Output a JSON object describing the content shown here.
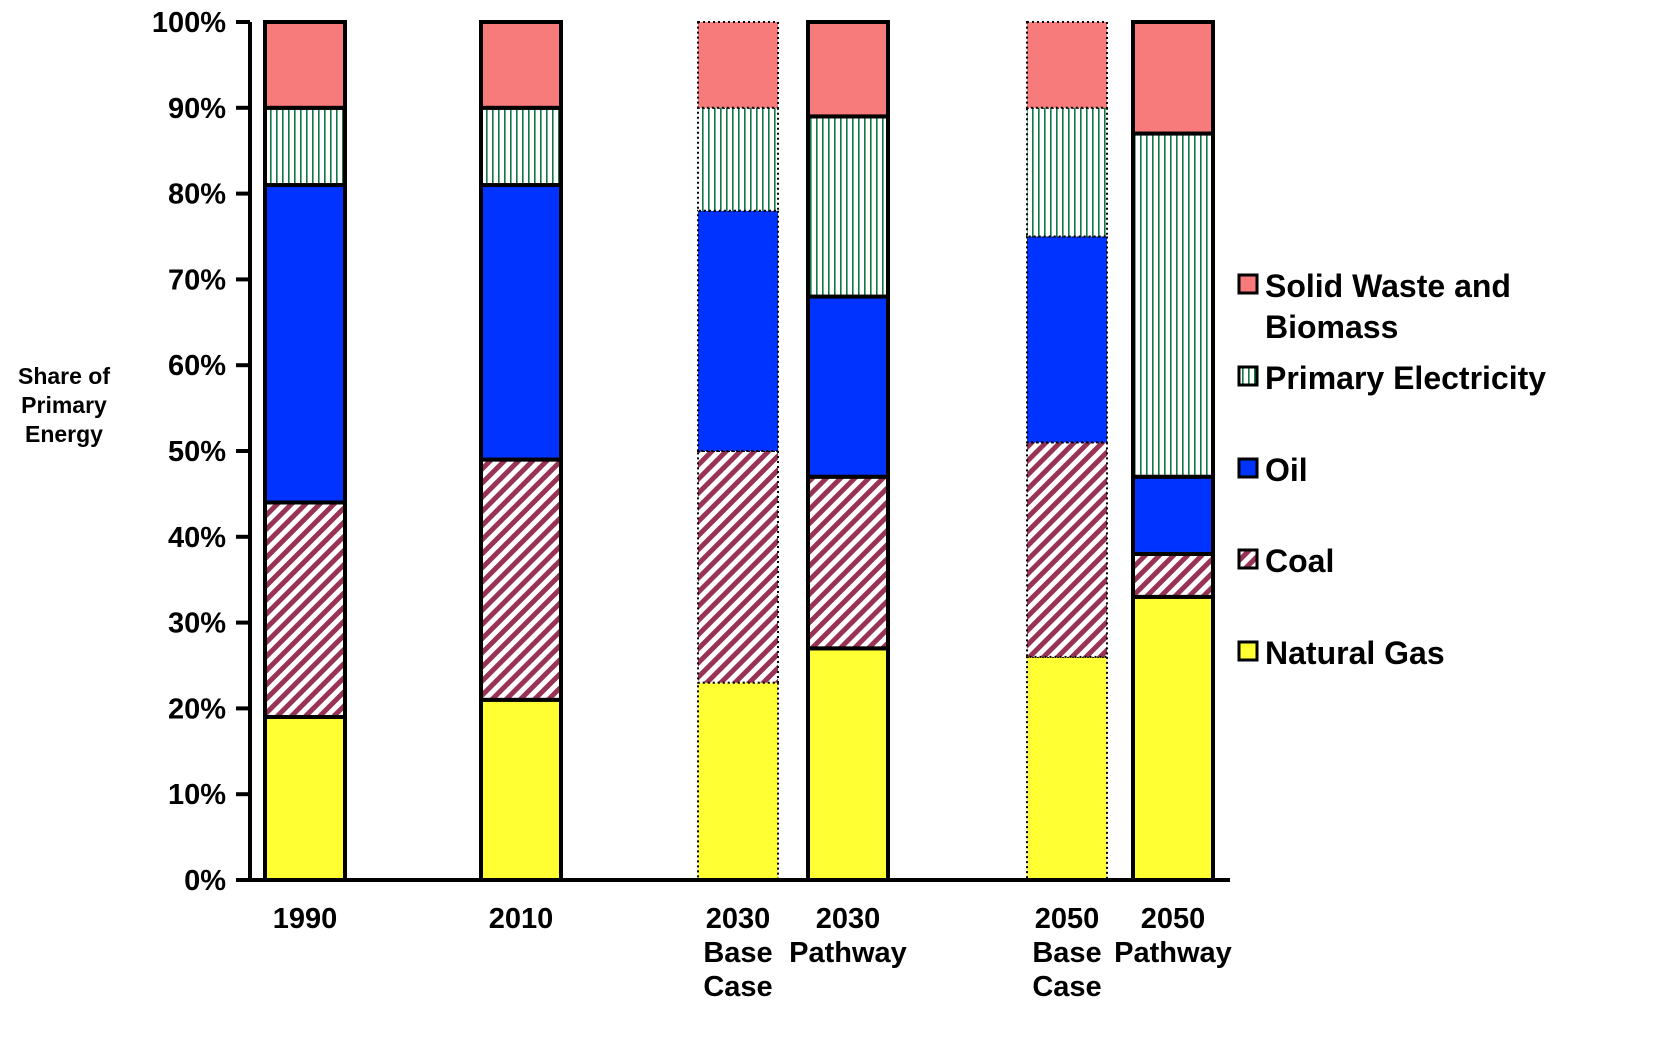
{
  "chart_data": {
    "type": "bar",
    "stacked": true,
    "ylabel": [
      "Share of",
      "Primary",
      "Energy"
    ],
    "ylim": [
      0,
      100
    ],
    "y_ticks": [
      {
        "value": 0,
        "label": "0%"
      },
      {
        "value": 10,
        "label": "10%"
      },
      {
        "value": 20,
        "label": "20%"
      },
      {
        "value": 30,
        "label": "30%"
      },
      {
        "value": 40,
        "label": "40%"
      },
      {
        "value": 50,
        "label": "50%"
      },
      {
        "value": 60,
        "label": "60%"
      },
      {
        "value": 70,
        "label": "70%"
      },
      {
        "value": 80,
        "label": "80%"
      },
      {
        "value": 90,
        "label": "90%"
      },
      {
        "value": 100,
        "label": "100%"
      }
    ],
    "categories": [
      {
        "lines": [
          "1990"
        ],
        "dotted": false
      },
      {
        "lines": [
          "2010"
        ],
        "dotted": false
      },
      {
        "lines": [
          "2030",
          "Base",
          "Case"
        ],
        "dotted": true
      },
      {
        "lines": [
          "2030",
          "Pathway"
        ],
        "dotted": false
      },
      {
        "lines": [
          "2050",
          "Base",
          "Case"
        ],
        "dotted": true
      },
      {
        "lines": [
          "2050",
          "Pathway"
        ],
        "dotted": false
      }
    ],
    "series": [
      {
        "name": "Natural Gas",
        "color": "#ffff33",
        "pattern": "solid",
        "values": [
          19,
          21,
          23,
          27,
          26,
          33
        ]
      },
      {
        "name": "Coal",
        "color": "#993355",
        "pattern": "diagonal",
        "values": [
          25,
          28,
          27,
          20,
          25,
          5
        ]
      },
      {
        "name": "Oil",
        "color": "#0033ff",
        "pattern": "solid",
        "values": [
          37,
          32,
          28,
          21,
          24,
          9
        ]
      },
      {
        "name": "Primary Electricity",
        "color": "#117744",
        "pattern": "vertical",
        "values": [
          9,
          9,
          12,
          21,
          15,
          40
        ]
      },
      {
        "name": "Solid Waste and Biomass",
        "color": "#f77b7b",
        "pattern": "solid",
        "values": [
          10,
          10,
          10,
          11,
          10,
          13
        ]
      }
    ],
    "legend": {
      "placement": "right",
      "order": [
        "Solid Waste and Biomass",
        "Primary Electricity",
        "Oil",
        "Coal",
        "Natural Gas"
      ],
      "lines": {
        "Solid Waste and Biomass": [
          "Solid Waste and",
          "Biomass"
        ],
        "Primary Electricity": [
          "Primary Electricity"
        ],
        "Oil": [
          "Oil"
        ],
        "Coal": [
          "Coal"
        ],
        "Natural Gas": [
          "Natural Gas"
        ]
      }
    },
    "grid": false
  }
}
